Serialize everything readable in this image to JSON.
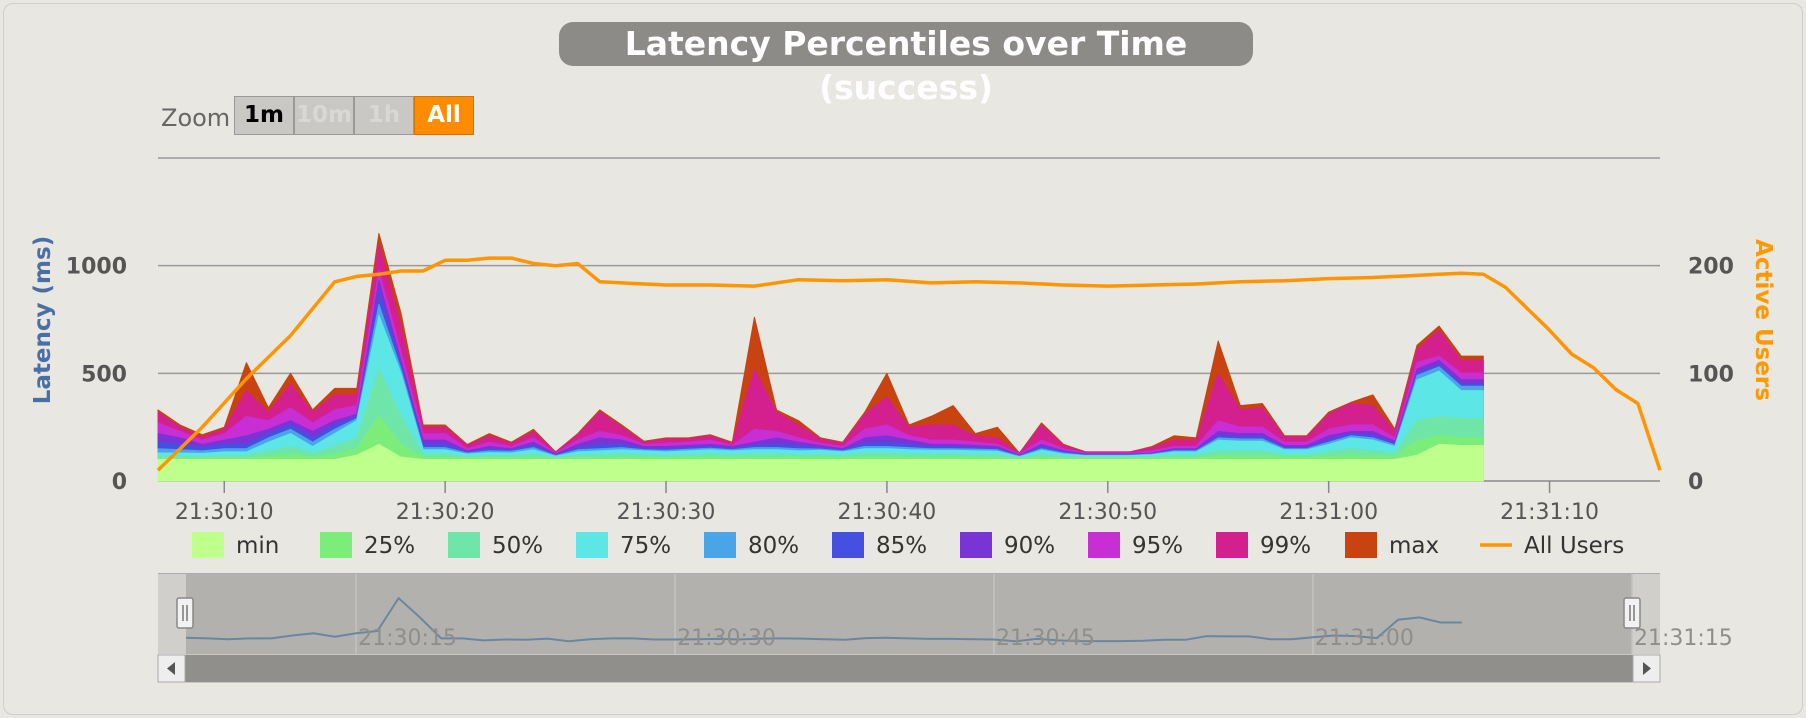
{
  "title": "Latency Percentiles over Time (success)",
  "zoom": {
    "label": "Zoom",
    "buttons": [
      {
        "label": "1m",
        "state": "normal"
      },
      {
        "label": "10m",
        "state": "disabled"
      },
      {
        "label": "1h",
        "state": "disabled"
      },
      {
        "label": "All",
        "state": "active"
      }
    ]
  },
  "colors": {
    "accent": "#ff8c00",
    "left_axis": "#4a6fa5",
    "right_axis": "#ff9900"
  },
  "chart_data": {
    "type": "area",
    "title": "Latency Percentiles over Time (success)",
    "ylabel": "Latency (ms)",
    "y2label": "Active Users",
    "ylim": [
      0,
      1500
    ],
    "y2lim": [
      0,
      300
    ],
    "yticks": [
      "0",
      "500",
      "1000"
    ],
    "y2ticks": [
      "0",
      "100",
      "200"
    ],
    "xlim": [
      "21:30:07",
      "21:31:15"
    ],
    "xticks": [
      "21:30:10",
      "21:30:20",
      "21:30:30",
      "21:30:40",
      "21:30:50",
      "21:31:00",
      "21:31:10"
    ],
    "navigator_ticks": [
      "21:30:15",
      "21:30:30",
      "21:30:45",
      "21:31:00",
      "21:31:15"
    ],
    "grid": true,
    "legend_position": "bottom",
    "x": [
      "21:30:07",
      "21:30:08",
      "21:30:09",
      "21:30:10",
      "21:30:11",
      "21:30:12",
      "21:30:13",
      "21:30:14",
      "21:30:15",
      "21:30:16",
      "21:30:17",
      "21:30:18",
      "21:30:19",
      "21:30:20",
      "21:30:21",
      "21:30:22",
      "21:30:23",
      "21:30:24",
      "21:30:25",
      "21:30:26",
      "21:30:27",
      "21:30:28",
      "21:30:29",
      "21:30:30",
      "21:30:31",
      "21:30:32",
      "21:30:33",
      "21:30:34",
      "21:30:35",
      "21:30:36",
      "21:30:37",
      "21:30:38",
      "21:30:39",
      "21:30:40",
      "21:30:41",
      "21:30:42",
      "21:30:43",
      "21:30:44",
      "21:30:45",
      "21:30:46",
      "21:30:47",
      "21:30:48",
      "21:30:49",
      "21:30:50",
      "21:30:51",
      "21:30:52",
      "21:30:53",
      "21:30:54",
      "21:30:55",
      "21:30:56",
      "21:30:57",
      "21:30:58",
      "21:30:59",
      "21:31:00",
      "21:31:01",
      "21:31:02",
      "21:31:03",
      "21:31:04",
      "21:31:05",
      "21:31:06",
      "21:31:07"
    ],
    "series": [
      {
        "name": "max",
        "color": "#c8430f",
        "values": [
          330,
          260,
          215,
          250,
          550,
          340,
          500,
          330,
          430,
          430,
          1150,
          780,
          260,
          260,
          170,
          220,
          180,
          240,
          135,
          220,
          330,
          260,
          185,
          200,
          200,
          215,
          180,
          760,
          330,
          280,
          200,
          180,
          320,
          500,
          260,
          300,
          350,
          220,
          250,
          130,
          270,
          170,
          135,
          135,
          135,
          160,
          210,
          200,
          650,
          350,
          360,
          210,
          210,
          320,
          365,
          400,
          240,
          630,
          720,
          580,
          580
        ]
      },
      {
        "name": "99%",
        "color": "#d4208f",
        "values": [
          320,
          250,
          205,
          240,
          420,
          320,
          450,
          320,
          400,
          400,
          1100,
          720,
          250,
          250,
          165,
          210,
          175,
          230,
          135,
          215,
          320,
          250,
          180,
          195,
          195,
          210,
          175,
          520,
          320,
          260,
          195,
          175,
          310,
          390,
          250,
          260,
          260,
          210,
          200,
          130,
          260,
          165,
          135,
          135,
          135,
          155,
          190,
          190,
          500,
          330,
          340,
          205,
          205,
          310,
          360,
          350,
          230,
          610,
          700,
          560,
          560
        ]
      },
      {
        "name": "95%",
        "color": "#c72ed4",
        "values": [
          270,
          230,
          190,
          220,
          300,
          280,
          340,
          270,
          330,
          350,
          980,
          600,
          220,
          220,
          150,
          180,
          160,
          200,
          130,
          190,
          230,
          210,
          170,
          175,
          180,
          190,
          165,
          240,
          230,
          200,
          175,
          160,
          240,
          260,
          210,
          190,
          190,
          180,
          170,
          125,
          190,
          150,
          130,
          130,
          130,
          140,
          160,
          160,
          280,
          250,
          250,
          180,
          180,
          240,
          260,
          260,
          200,
          550,
          580,
          500,
          500
        ]
      },
      {
        "name": "90%",
        "color": "#7a34d6",
        "values": [
          220,
          200,
          170,
          190,
          210,
          240,
          280,
          230,
          280,
          310,
          930,
          560,
          190,
          190,
          140,
          160,
          150,
          180,
          125,
          170,
          200,
          190,
          160,
          160,
          165,
          170,
          160,
          180,
          200,
          180,
          165,
          150,
          200,
          210,
          190,
          170,
          170,
          165,
          160,
          120,
          170,
          140,
          125,
          125,
          125,
          130,
          150,
          150,
          230,
          220,
          220,
          165,
          165,
          210,
          230,
          230,
          185,
          520,
          560,
          470,
          470
        ]
      },
      {
        "name": "85%",
        "color": "#4650e0",
        "values": [
          180,
          170,
          155,
          170,
          170,
          220,
          260,
          200,
          260,
          300,
          880,
          540,
          170,
          170,
          135,
          150,
          145,
          165,
          120,
          155,
          170,
          170,
          150,
          150,
          155,
          160,
          150,
          165,
          170,
          165,
          155,
          145,
          175,
          180,
          170,
          160,
          160,
          155,
          150,
          118,
          160,
          135,
          122,
          122,
          122,
          127,
          145,
          145,
          210,
          205,
          205,
          155,
          155,
          190,
          220,
          210,
          175,
          500,
          540,
          450,
          450
        ]
      },
      {
        "name": "80%",
        "color": "#4aa5e8",
        "values": [
          150,
          145,
          140,
          150,
          150,
          200,
          240,
          180,
          240,
          290,
          820,
          520,
          155,
          155,
          130,
          140,
          138,
          155,
          118,
          145,
          150,
          155,
          145,
          142,
          147,
          152,
          145,
          155,
          155,
          150,
          148,
          140,
          160,
          160,
          155,
          150,
          150,
          148,
          145,
          115,
          150,
          130,
          120,
          120,
          120,
          125,
          140,
          140,
          200,
          195,
          195,
          150,
          150,
          180,
          210,
          200,
          168,
          490,
          530,
          440,
          440
        ]
      },
      {
        "name": "75%",
        "color": "#5ce6e6",
        "values": [
          130,
          130,
          128,
          135,
          135,
          180,
          220,
          160,
          220,
          280,
          770,
          500,
          145,
          145,
          125,
          132,
          130,
          145,
          115,
          135,
          140,
          145,
          140,
          135,
          140,
          145,
          140,
          145,
          145,
          140,
          142,
          135,
          150,
          150,
          145,
          143,
          143,
          140,
          138,
          112,
          143,
          125,
          118,
          118,
          118,
          122,
          135,
          135,
          190,
          185,
          185,
          145,
          145,
          170,
          200,
          190,
          160,
          470,
          510,
          420,
          420
        ]
      },
      {
        "name": "50%",
        "color": "#6fe6a8",
        "values": [
          115,
          115,
          113,
          118,
          118,
          140,
          160,
          130,
          160,
          200,
          520,
          300,
          125,
          125,
          115,
          118,
          118,
          125,
          110,
          120,
          122,
          125,
          122,
          120,
          122,
          125,
          122,
          125,
          125,
          122,
          123,
          120,
          128,
          128,
          125,
          124,
          124,
          122,
          121,
          108,
          124,
          115,
          112,
          112,
          112,
          114,
          120,
          120,
          140,
          140,
          140,
          122,
          122,
          135,
          150,
          140,
          130,
          280,
          300,
          290,
          290
        ]
      },
      {
        "name": "25%",
        "color": "#7ded7a",
        "values": [
          105,
          105,
          104,
          107,
          107,
          115,
          125,
          112,
          125,
          150,
          300,
          170,
          110,
          110,
          106,
          108,
          108,
          110,
          103,
          108,
          109,
          110,
          109,
          108,
          109,
          110,
          109,
          110,
          110,
          109,
          109,
          108,
          112,
          112,
          111,
          110,
          110,
          109,
          108,
          102,
          110,
          106,
          105,
          105,
          105,
          106,
          108,
          108,
          118,
          118,
          118,
          110,
          110,
          115,
          120,
          118,
          112,
          190,
          210,
          200,
          200
        ]
      },
      {
        "name": "min",
        "color": "#bfff8c",
        "values": [
          100,
          100,
          100,
          100,
          100,
          100,
          100,
          100,
          100,
          120,
          170,
          110,
          100,
          100,
          100,
          100,
          100,
          100,
          100,
          100,
          100,
          100,
          100,
          100,
          100,
          100,
          100,
          100,
          100,
          100,
          100,
          100,
          100,
          100,
          100,
          100,
          100,
          100,
          100,
          100,
          100,
          100,
          100,
          100,
          100,
          100,
          100,
          100,
          100,
          100,
          100,
          100,
          100,
          100,
          100,
          100,
          100,
          120,
          170,
          165,
          165
        ]
      }
    ],
    "users": {
      "name": "All Users",
      "color": "#ff9500",
      "x": [
        "21:30:07",
        "21:30:09",
        "21:30:11",
        "21:30:13",
        "21:30:15",
        "21:30:16",
        "21:30:17",
        "21:30:18",
        "21:30:19",
        "21:30:20",
        "21:30:21",
        "21:30:22",
        "21:30:23",
        "21:30:24",
        "21:30:25",
        "21:30:26",
        "21:30:27",
        "21:30:28",
        "21:30:30",
        "21:30:32",
        "21:30:34",
        "21:30:36",
        "21:30:38",
        "21:30:40",
        "21:30:42",
        "21:30:44",
        "21:30:46",
        "21:30:48",
        "21:30:50",
        "21:30:52",
        "21:30:54",
        "21:30:56",
        "21:30:58",
        "21:31:00",
        "21:31:02",
        "21:31:04",
        "21:31:05",
        "21:31:06",
        "21:31:07",
        "21:31:08",
        "21:31:09",
        "21:31:10",
        "21:31:11",
        "21:31:12",
        "21:31:13",
        "21:31:14",
        "21:31:15"
      ],
      "values": [
        10,
        50,
        95,
        135,
        185,
        190,
        192,
        195,
        195,
        205,
        205,
        207,
        207,
        202,
        200,
        202,
        185,
        184,
        182,
        182,
        181,
        187,
        186,
        187,
        184,
        185,
        184,
        182,
        181,
        182,
        183,
        185,
        186,
        188,
        189,
        191,
        192,
        193,
        192,
        180,
        160,
        140,
        118,
        105,
        85,
        72,
        10
      ]
    }
  },
  "legend": [
    {
      "label": "min",
      "color": "#bfff8c",
      "kind": "box"
    },
    {
      "label": "25%",
      "color": "#7ded7a",
      "kind": "box"
    },
    {
      "label": "50%",
      "color": "#6fe6a8",
      "kind": "box"
    },
    {
      "label": "75%",
      "color": "#5ce6e6",
      "kind": "box"
    },
    {
      "label": "80%",
      "color": "#4aa5e8",
      "kind": "box"
    },
    {
      "label": "85%",
      "color": "#4650e0",
      "kind": "box"
    },
    {
      "label": "90%",
      "color": "#7a34d6",
      "kind": "box"
    },
    {
      "label": "95%",
      "color": "#c72ed4",
      "kind": "box"
    },
    {
      "label": "99%",
      "color": "#d4208f",
      "kind": "box"
    },
    {
      "label": "max",
      "color": "#c8430f",
      "kind": "box"
    },
    {
      "label": "All Users",
      "color": "#ff9500",
      "kind": "line"
    }
  ],
  "navigator": {
    "range_start": "21:30:07",
    "range_end": "21:31:15",
    "series_color": "#6b86a3"
  }
}
